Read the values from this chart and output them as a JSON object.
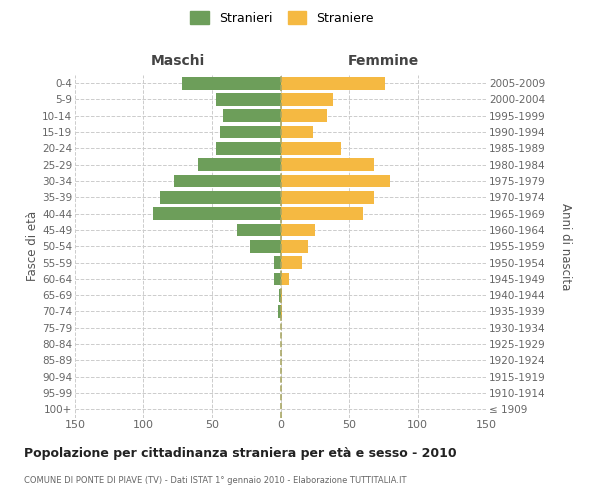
{
  "age_groups": [
    "100+",
    "95-99",
    "90-94",
    "85-89",
    "80-84",
    "75-79",
    "70-74",
    "65-69",
    "60-64",
    "55-59",
    "50-54",
    "45-49",
    "40-44",
    "35-39",
    "30-34",
    "25-29",
    "20-24",
    "15-19",
    "10-14",
    "5-9",
    "0-4"
  ],
  "birth_years": [
    "≤ 1909",
    "1910-1914",
    "1915-1919",
    "1920-1924",
    "1925-1929",
    "1930-1934",
    "1935-1939",
    "1940-1944",
    "1945-1949",
    "1950-1954",
    "1955-1959",
    "1960-1964",
    "1965-1969",
    "1970-1974",
    "1975-1979",
    "1980-1984",
    "1985-1989",
    "1990-1994",
    "1995-1999",
    "2000-2004",
    "2005-2009"
  ],
  "males": [
    0,
    0,
    0,
    0,
    0,
    0,
    2,
    1,
    5,
    5,
    22,
    32,
    93,
    88,
    78,
    60,
    47,
    44,
    42,
    47,
    72
  ],
  "females": [
    0,
    0,
    0,
    0,
    0,
    0,
    1,
    1,
    6,
    16,
    20,
    25,
    60,
    68,
    80,
    68,
    44,
    24,
    34,
    38,
    76
  ],
  "male_color": "#6d9e5a",
  "female_color": "#f5b942",
  "title": "Popolazione per cittadinanza straniera per età e sesso - 2010",
  "subtitle": "COMUNE DI PONTE DI PIAVE (TV) - Dati ISTAT 1° gennaio 2010 - Elaborazione TUTTITALIA.IT",
  "ylabel_left": "Fasce di età",
  "ylabel_right": "Anni di nascita",
  "legend_male": "Stranieri",
  "legend_female": "Straniere",
  "xlim": 150,
  "background_color": "#ffffff",
  "grid_color": "#cccccc",
  "maschi_label": "Maschi",
  "femmine_label": "Femmine"
}
